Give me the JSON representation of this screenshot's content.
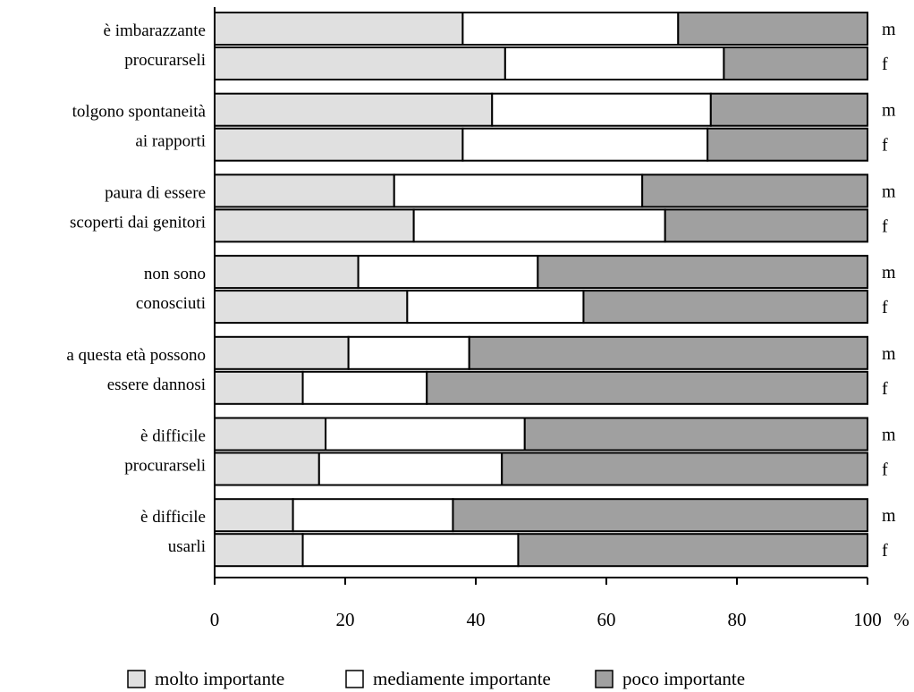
{
  "chart_data": {
    "type": "bar",
    "orientation": "horizontal",
    "stacked": true,
    "xlim": [
      0,
      100
    ],
    "x_ticks": [
      0,
      20,
      40,
      60,
      80,
      100
    ],
    "x_unit": "%",
    "grid": false,
    "legend_position": "bottom",
    "series": [
      {
        "name": "molto importante",
        "color": "#e0e0e0"
      },
      {
        "name": "mediamente importante",
        "color": "#ffffff"
      },
      {
        "name": "poco importante",
        "color": "#a0a0a0"
      }
    ],
    "groups": [
      {
        "label_lines": [
          "è imbarazzante",
          "procurarseli"
        ],
        "bars": [
          {
            "sex": "m",
            "values": [
              38,
              33,
              29
            ]
          },
          {
            "sex": "f",
            "values": [
              44.5,
              33.5,
              22
            ]
          }
        ]
      },
      {
        "label_lines": [
          "tolgono spontaneità",
          "ai rapporti"
        ],
        "bars": [
          {
            "sex": "m",
            "values": [
              42.5,
              33.5,
              24
            ]
          },
          {
            "sex": "f",
            "values": [
              38,
              37.5,
              24.5
            ]
          }
        ]
      },
      {
        "label_lines": [
          "paura di essere",
          "scoperti dai genitori"
        ],
        "bars": [
          {
            "sex": "m",
            "values": [
              27.5,
              38,
              34.5
            ]
          },
          {
            "sex": "f",
            "values": [
              30.5,
              38.5,
              31
            ]
          }
        ]
      },
      {
        "label_lines": [
          "non sono",
          "conosciuti"
        ],
        "bars": [
          {
            "sex": "m",
            "values": [
              22,
              27.5,
              50.5
            ]
          },
          {
            "sex": "f",
            "values": [
              29.5,
              27,
              43.5
            ]
          }
        ]
      },
      {
        "label_lines": [
          "a questa età possono",
          "essere dannosi"
        ],
        "bars": [
          {
            "sex": "m",
            "values": [
              20.5,
              18.5,
              61
            ]
          },
          {
            "sex": "f",
            "values": [
              13.5,
              19,
              67.5
            ]
          }
        ]
      },
      {
        "label_lines": [
          "è difficile",
          "procurarseli"
        ],
        "bars": [
          {
            "sex": "m",
            "values": [
              17,
              30.5,
              52.5
            ]
          },
          {
            "sex": "f",
            "values": [
              16,
              28,
              56
            ]
          }
        ]
      },
      {
        "label_lines": [
          "è difficile",
          "usarli"
        ],
        "bars": [
          {
            "sex": "m",
            "values": [
              12,
              24.5,
              63.5
            ]
          },
          {
            "sex": "f",
            "values": [
              13.5,
              33,
              53.5
            ]
          }
        ]
      }
    ]
  }
}
